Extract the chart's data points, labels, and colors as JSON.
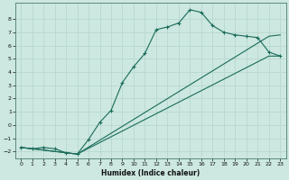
{
  "xlabel": "Humidex (Indice chaleur)",
  "ylabel": "",
  "background_color": "#cce8e0",
  "grid_color": "#b8d8cf",
  "line_color": "#1a6b5a",
  "xlim": [
    -0.5,
    23.5
  ],
  "ylim": [
    -2.5,
    9.2
  ],
  "xticks": [
    0,
    1,
    2,
    3,
    4,
    5,
    6,
    7,
    8,
    9,
    10,
    11,
    12,
    13,
    14,
    15,
    16,
    17,
    18,
    19,
    20,
    21,
    22,
    23
  ],
  "yticks": [
    -2,
    -1,
    0,
    1,
    2,
    3,
    4,
    5,
    6,
    7,
    8
  ],
  "curve1_x": [
    0,
    1,
    2,
    3,
    4,
    5,
    6,
    7,
    8,
    9,
    10,
    11,
    12,
    13,
    14,
    15,
    16,
    17,
    18,
    19,
    20,
    21,
    22,
    23
  ],
  "curve1_y": [
    -1.7,
    -1.8,
    -1.7,
    -1.8,
    -2.1,
    -2.2,
    -1.1,
    0.2,
    1.1,
    3.2,
    4.4,
    5.4,
    7.2,
    7.4,
    7.7,
    8.7,
    8.5,
    7.5,
    7.0,
    6.8,
    6.7,
    6.6,
    5.5,
    5.2
  ],
  "curve2_x": [
    0,
    5,
    22,
    23
  ],
  "curve2_y": [
    -1.7,
    -2.2,
    5.2,
    5.2
  ],
  "curve3_x": [
    0,
    5,
    22,
    23
  ],
  "curve3_y": [
    -1.7,
    -2.2,
    6.7,
    6.8
  ]
}
